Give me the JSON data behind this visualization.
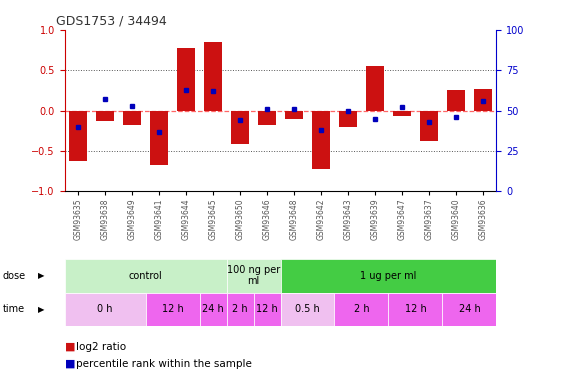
{
  "title": "GDS1753 / 34494",
  "samples": [
    "GSM93635",
    "GSM93638",
    "GSM93649",
    "GSM93641",
    "GSM93644",
    "GSM93645",
    "GSM93650",
    "GSM93646",
    "GSM93648",
    "GSM93642",
    "GSM93643",
    "GSM93639",
    "GSM93647",
    "GSM93637",
    "GSM93640",
    "GSM93636"
  ],
  "log2_ratio": [
    -0.62,
    -0.13,
    -0.18,
    -0.68,
    0.78,
    0.85,
    -0.42,
    -0.18,
    -0.1,
    -0.72,
    -0.2,
    0.55,
    -0.07,
    -0.38,
    0.25,
    0.27
  ],
  "percentile": [
    40,
    57,
    53,
    37,
    63,
    62,
    44,
    51,
    51,
    38,
    50,
    45,
    52,
    43,
    46,
    56
  ],
  "ylim": [
    -1,
    1
  ],
  "yticks_left": [
    -1,
    -0.5,
    0,
    0.5,
    1
  ],
  "yticks_right": [
    0,
    25,
    50,
    75,
    100
  ],
  "dose_groups": [
    {
      "label": "control",
      "start": 0,
      "end": 6,
      "color": "#C8F0C8"
    },
    {
      "label": "100 ng per\nml",
      "start": 6,
      "end": 8,
      "color": "#C8F0C8"
    },
    {
      "label": "1 ug per ml",
      "start": 8,
      "end": 16,
      "color": "#44CC44"
    }
  ],
  "time_groups": [
    {
      "label": "0 h",
      "start": 0,
      "end": 3,
      "color": "#F0C0F0"
    },
    {
      "label": "12 h",
      "start": 3,
      "end": 5,
      "color": "#EE66EE"
    },
    {
      "label": "24 h",
      "start": 5,
      "end": 6,
      "color": "#EE66EE"
    },
    {
      "label": "2 h",
      "start": 6,
      "end": 7,
      "color": "#EE66EE"
    },
    {
      "label": "12 h",
      "start": 7,
      "end": 8,
      "color": "#EE66EE"
    },
    {
      "label": "0.5 h",
      "start": 8,
      "end": 10,
      "color": "#F0C0F0"
    },
    {
      "label": "2 h",
      "start": 10,
      "end": 12,
      "color": "#EE66EE"
    },
    {
      "label": "12 h",
      "start": 12,
      "end": 14,
      "color": "#EE66EE"
    },
    {
      "label": "24 h",
      "start": 14,
      "end": 16,
      "color": "#EE66EE"
    }
  ],
  "bar_color": "#CC1111",
  "dot_color": "#0000BB",
  "zero_line_color": "#FF6666",
  "dotted_line_color": "#555555",
  "bg_color": "#FFFFFF",
  "tick_label_color": "#555555",
  "left_axis_color": "#CC0000",
  "right_axis_color": "#0000CC",
  "label_color": "#333333"
}
